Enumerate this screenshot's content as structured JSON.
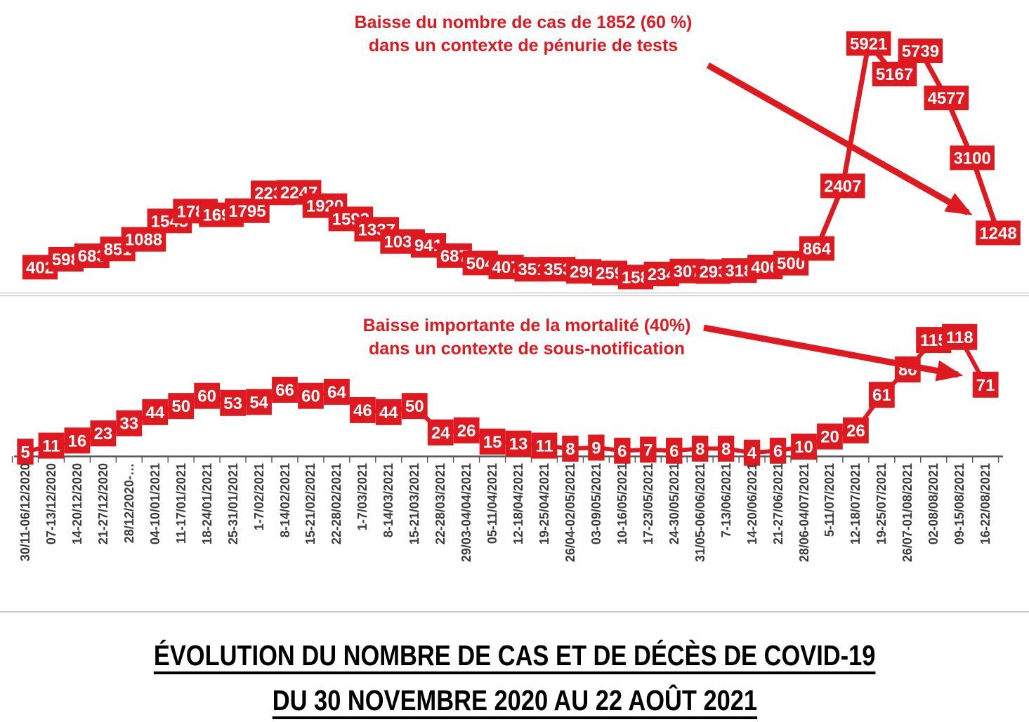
{
  "title": {
    "line1": "ÉVOLUTION DU NOMBRE DE CAS ET DE DÉCÈS DE COVID-19",
    "line2": "DU 30 NOVEMBRE 2020 AU 22 AOÛT 2021"
  },
  "annotations": {
    "cases": {
      "line1": "Baisse du nombre de cas  de 1852 (60 %)",
      "line2": "dans un contexte de pénurie de tests"
    },
    "deaths": {
      "line1": "Baisse importante de la  mortalité (40%)",
      "line2": "dans un contexte de sous-notification"
    }
  },
  "colors": {
    "label_red": "#DE1A20",
    "cases_marker_blue": "#3D4D9E",
    "deaths_marker_blue": "#5A69B5",
    "axis_gray": "#555555",
    "separator_gray": "#CCCBD1",
    "xlabel_gray": "#3D3D3D",
    "title_black": "#000000"
  },
  "chart_data": [
    {
      "type": "line",
      "name": "weekly_cases",
      "categories": [
        "30/11-06/12/2020",
        "07-13/12/2020",
        "14-20/12/2020",
        "21-27/12/2020",
        "28/12/2020-…",
        "04-10/01/2021",
        "11-17/01/2021",
        "18-24/01/2021",
        "25-31/01/2021",
        "1-7/02/2021",
        "8-14/02/2021",
        "15-21/02/2021",
        "22-28/02/2021",
        "1-7/03/2021",
        "8-14/03/2021",
        "15-21/03/2021",
        "22-28/03/2021",
        "29/03-04/04/2021",
        "05-11/04/2021",
        "12-18/04/2021",
        "19-25/04/2021",
        "26/04-02/05/2021",
        "03-09/05/2021",
        "10-16/05/2021",
        "17-23/05/2021",
        "24-30/05/2021",
        "31/05-06/06/2021",
        "7-13/06/2021",
        "14-20/06/2021",
        "21-27/06/2021",
        "28/06-04/07/2021",
        "5-11/07/2021",
        "12-18/07/2021",
        "19-25/07/2021",
        "26/07-01/08/2021",
        "02-08/08/2021",
        "09-15/08/2021",
        "16-22/08/2021"
      ],
      "values": [
        402,
        598,
        683,
        851,
        1088,
        1543,
        1785,
        1695,
        1795,
        2235,
        2247,
        1920,
        1593,
        1337,
        1035,
        941,
        687,
        504,
        407,
        351,
        353,
        298,
        259,
        158,
        234,
        307,
        293,
        318,
        406,
        500,
        864,
        2407,
        5921,
        5167,
        5739,
        4577,
        3100,
        1248
      ],
      "ylim": [
        0,
        6000
      ],
      "grid": false,
      "legend": "none",
      "marker": "circle",
      "data_labels": "every point, red box with white bold text"
    },
    {
      "type": "line",
      "name": "weekly_deaths",
      "categories": [
        "30/11-06/12/2020",
        "07-13/12/2020",
        "14-20/12/2020",
        "21-27/12/2020",
        "28/12/2020-…",
        "04-10/01/2021",
        "11-17/01/2021",
        "18-24/01/2021",
        "25-31/01/2021",
        "1-7/02/2021",
        "8-14/02/2021",
        "15-21/02/2021",
        "22-28/02/2021",
        "1-7/03/2021",
        "8-14/03/2021",
        "15-21/03/2021",
        "22-28/03/2021",
        "29/03-04/04/2021",
        "05-11/04/2021",
        "12-18/04/2021",
        "19-25/04/2021",
        "26/04-02/05/2021",
        "03-09/05/2021",
        "10-16/05/2021",
        "17-23/05/2021",
        "24-30/05/2021",
        "31/05-06/06/2021",
        "7-13/06/2021",
        "14-20/06/2021",
        "21-27/06/2021",
        "28/06-04/07/2021",
        "5-11/07/2021",
        "12-18/07/2021",
        "19-25/07/2021",
        "26/07-01/08/2021",
        "02-08/08/2021",
        "09-15/08/2021",
        "16-22/08/2021"
      ],
      "values": [
        5,
        11,
        16,
        23,
        33,
        44,
        50,
        60,
        53,
        54,
        66,
        60,
        64,
        46,
        44,
        50,
        24,
        26,
        15,
        13,
        11,
        8,
        9,
        6,
        7,
        6,
        8,
        8,
        4,
        6,
        10,
        20,
        26,
        61,
        86,
        115,
        118,
        71
      ],
      "ylim": [
        0,
        120
      ],
      "grid": false,
      "legend": "none",
      "marker": "circle",
      "data_labels": "every point, red box with white bold text"
    }
  ]
}
